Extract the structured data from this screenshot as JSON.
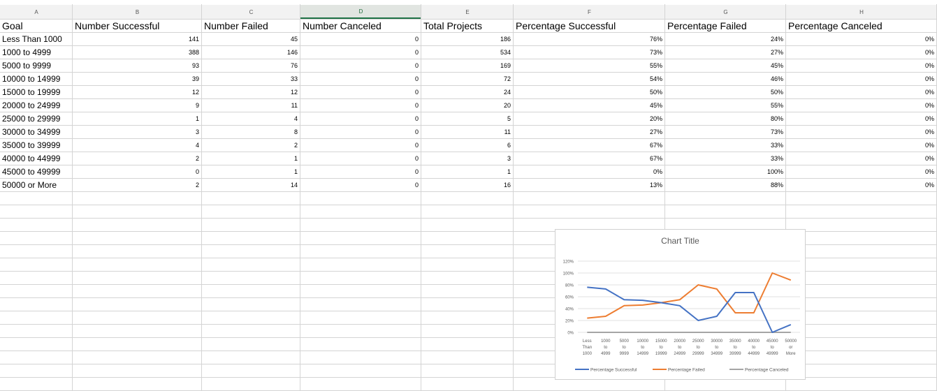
{
  "columns": [
    "A",
    "B",
    "C",
    "D",
    "E",
    "F",
    "G",
    "H"
  ],
  "selected_column": "D",
  "headers": [
    "Goal",
    "Number Successful",
    "Number Failed",
    "Number Canceled",
    "Total Projects",
    "Percentage Successful",
    "Percentage Failed",
    "Percentage Canceled"
  ],
  "rows": [
    [
      "Less Than 1000",
      "141",
      "45",
      "0",
      "186",
      "76%",
      "24%",
      "0%"
    ],
    [
      "1000 to 4999",
      "388",
      "146",
      "0",
      "534",
      "73%",
      "27%",
      "0%"
    ],
    [
      "5000 to 9999",
      "93",
      "76",
      "0",
      "169",
      "55%",
      "45%",
      "0%"
    ],
    [
      "10000 to 14999",
      "39",
      "33",
      "0",
      "72",
      "54%",
      "46%",
      "0%"
    ],
    [
      "15000 to 19999",
      "12",
      "12",
      "0",
      "24",
      "50%",
      "50%",
      "0%"
    ],
    [
      "20000 to 24999",
      "9",
      "11",
      "0",
      "20",
      "45%",
      "55%",
      "0%"
    ],
    [
      "25000 to 29999",
      "1",
      "4",
      "0",
      "5",
      "20%",
      "80%",
      "0%"
    ],
    [
      "30000 to 34999",
      "3",
      "8",
      "0",
      "11",
      "27%",
      "73%",
      "0%"
    ],
    [
      "35000 to 39999",
      "4",
      "2",
      "0",
      "6",
      "67%",
      "33%",
      "0%"
    ],
    [
      "40000 to 44999",
      "2",
      "1",
      "0",
      "3",
      "67%",
      "33%",
      "0%"
    ],
    [
      "45000 to 49999",
      "0",
      "1",
      "0",
      "1",
      "0%",
      "100%",
      "0%"
    ],
    [
      "50000 or More",
      "2",
      "14",
      "0",
      "16",
      "13%",
      "88%",
      "0%"
    ]
  ],
  "chart_data": {
    "type": "line",
    "title": "Chart Title",
    "categories": [
      [
        "Less",
        "Than",
        "1000"
      ],
      [
        "1000",
        "to",
        "4999"
      ],
      [
        "5000",
        "to",
        "9999"
      ],
      [
        "10000",
        "to",
        "14999"
      ],
      [
        "15000",
        "to",
        "19999"
      ],
      [
        "20000",
        "to",
        "24999"
      ],
      [
        "25000",
        "to",
        "29999"
      ],
      [
        "30000",
        "to",
        "34999"
      ],
      [
        "35000",
        "to",
        "39999"
      ],
      [
        "40000",
        "to",
        "44999"
      ],
      [
        "45000",
        "to",
        "49999"
      ],
      [
        "50000",
        "or",
        "More"
      ]
    ],
    "ylim": [
      0,
      1.2
    ],
    "yticks": [
      "0%",
      "20%",
      "40%",
      "60%",
      "80%",
      "100%",
      "120%"
    ],
    "grid": true,
    "legend": "bottom",
    "series": [
      {
        "name": "Percentage Successful",
        "color": "#4472c4",
        "values": [
          0.76,
          0.73,
          0.55,
          0.54,
          0.5,
          0.45,
          0.2,
          0.27,
          0.67,
          0.67,
          0.0,
          0.13
        ]
      },
      {
        "name": "Percentage Failed",
        "color": "#ed7d31",
        "values": [
          0.24,
          0.27,
          0.45,
          0.46,
          0.5,
          0.55,
          0.8,
          0.73,
          0.33,
          0.33,
          1.0,
          0.88
        ]
      },
      {
        "name": "Percentage Canceled",
        "color": "#a5a5a5",
        "values": [
          0,
          0,
          0,
          0,
          0,
          0,
          0,
          0,
          0,
          0,
          0,
          0
        ]
      }
    ]
  }
}
